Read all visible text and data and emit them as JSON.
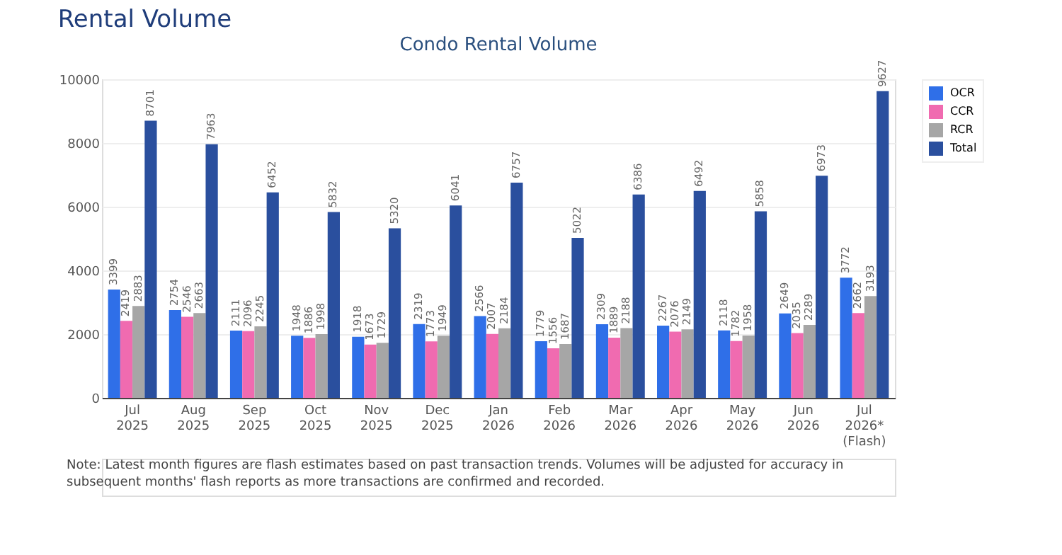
{
  "chart_data": {
    "type": "bar",
    "title": "Rental Volume",
    "subtitle": "Condo Rental Volume",
    "categories": [
      "Jul\n2025",
      "Aug\n2025",
      "Sep\n2025",
      "Oct\n2025",
      "Nov\n2025",
      "Dec\n2025",
      "Jan\n2026",
      "Feb\n2026",
      "Mar\n2026",
      "Apr\n2026",
      "May\n2026",
      "Jun\n2026",
      "Jul\n2026*\n(Flash)"
    ],
    "series": [
      {
        "name": "OCR",
        "color": "#2f6fe8",
        "values": [
          3399,
          2754,
          2111,
          1948,
          1918,
          2319,
          2566,
          1779,
          2309,
          2267,
          2118,
          2649,
          3772
        ]
      },
      {
        "name": "CCR",
        "color": "#f06bb0",
        "values": [
          2419,
          2546,
          2096,
          1886,
          1673,
          1773,
          2007,
          1556,
          1889,
          2076,
          1782,
          2035,
          2662
        ]
      },
      {
        "name": "RCR",
        "color": "#a6a6a6",
        "values": [
          2883,
          2663,
          2245,
          1998,
          1729,
          1949,
          2184,
          1687,
          2188,
          2149,
          1958,
          2289,
          3193
        ]
      },
      {
        "name": "Total",
        "color": "#2a4f9e",
        "values": [
          8701,
          7963,
          6452,
          5832,
          5320,
          6041,
          6757,
          5022,
          6386,
          6492,
          5858,
          6973,
          9627
        ]
      }
    ],
    "ylim": [
      0,
      10000
    ],
    "yticks": [
      0,
      2000,
      4000,
      6000,
      8000,
      10000
    ],
    "grid": "y",
    "legend": "right",
    "data_labels": true,
    "annotations": [
      "Note: Latest month figures are flash estimates based on past transaction trends. Volumes will be adjusted for accuracy in subsequent months' flash reports as more transactions are confirmed and recorded."
    ]
  }
}
